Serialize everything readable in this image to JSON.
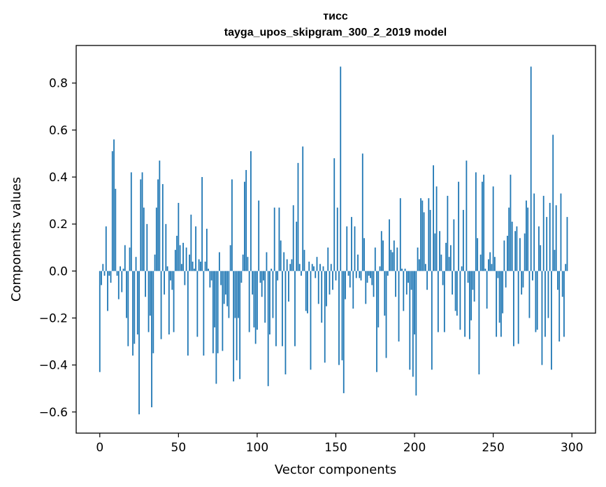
{
  "chart_data": {
    "type": "bar",
    "title": "тисс",
    "subtitle": "tayga_upos_skipgram_300_2_2019 model",
    "xlabel": "Vector components",
    "ylabel": "Components values",
    "xlim": [
      -15,
      315
    ],
    "ylim": [
      -0.69,
      0.96
    ],
    "xticks": [
      0,
      50,
      100,
      150,
      200,
      250,
      300
    ],
    "xtick_labels": [
      "0",
      "50",
      "100",
      "150",
      "200",
      "250",
      "300"
    ],
    "yticks": [
      -0.6,
      -0.4,
      -0.2,
      0.0,
      0.2,
      0.4,
      0.6,
      0.8
    ],
    "ytick_labels": [
      "−0.6",
      "−0.4",
      "−0.2",
      "0.0",
      "0.2",
      "0.4",
      "0.6",
      "0.8"
    ],
    "grid": false,
    "bar_color": "#1f77b4",
    "x_start": 0,
    "values": [
      -0.43,
      -0.06,
      0.03,
      -0.02,
      0.19,
      -0.17,
      -0.02,
      -0.05,
      0.51,
      0.56,
      0.35,
      -0.02,
      -0.12,
      0.02,
      -0.09,
      0.01,
      0.11,
      -0.2,
      -0.32,
      0.1,
      0.42,
      -0.36,
      -0.31,
      0.06,
      -0.27,
      -0.61,
      0.39,
      0.42,
      0.27,
      -0.11,
      0.2,
      -0.26,
      -0.19,
      -0.58,
      -0.35,
      0.07,
      0.27,
      0.39,
      0.47,
      -0.29,
      0.37,
      -0.1,
      0.2,
      0.02,
      -0.27,
      -0.04,
      -0.08,
      -0.26,
      0.09,
      0.15,
      0.29,
      0.11,
      0.03,
      0.12,
      -0.06,
      0.1,
      -0.36,
      0.07,
      0.24,
      0.04,
      0.01,
      0.19,
      -0.28,
      0.05,
      0.04,
      0.4,
      -0.36,
      0.04,
      0.18,
      0.01,
      -0.07,
      -0.04,
      -0.35,
      -0.24,
      -0.48,
      -0.35,
      0.08,
      -0.06,
      -0.34,
      -0.14,
      -0.1,
      -0.15,
      -0.2,
      0.11,
      0.39,
      -0.47,
      -0.2,
      -0.38,
      -0.2,
      -0.46,
      -0.05,
      0.07,
      0.38,
      0.43,
      0.06,
      -0.26,
      0.51,
      -0.1,
      -0.24,
      -0.31,
      -0.25,
      0.3,
      -0.05,
      -0.11,
      -0.04,
      -0.22,
      0.08,
      -0.49,
      -0.27,
      0.01,
      -0.2,
      0.27,
      -0.32,
      -0.04,
      0.27,
      0.13,
      -0.32,
      0.08,
      -0.44,
      0.05,
      -0.13,
      0.03,
      0.05,
      0.28,
      -0.32,
      0.21,
      0.46,
      0.03,
      -0.02,
      0.53,
      0.09,
      -0.17,
      -0.18,
      0.04,
      -0.42,
      0.03,
      0.02,
      -0.03,
      0.06,
      -0.14,
      0.03,
      -0.22,
      0.02,
      -0.39,
      -0.15,
      0.1,
      -0.1,
      0.03,
      -0.08,
      0.48,
      -0.04,
      0.27,
      -0.4,
      0.87,
      -0.38,
      -0.52,
      -0.12,
      0.19,
      -0.02,
      -0.07,
      0.23,
      -0.16,
      0.19,
      -0.03,
      0.07,
      -0.03,
      -0.04,
      0.5,
      0.14,
      -0.14,
      -0.05,
      -0.02,
      -0.03,
      -0.06,
      -0.11,
      0.1,
      -0.43,
      -0.24,
      0.02,
      0.17,
      0.13,
      -0.19,
      -0.37,
      -0.02,
      0.22,
      0.09,
      0.08,
      0.13,
      -0.11,
      0.1,
      -0.3,
      0.31,
      0.01,
      -0.17,
      0.01,
      -0.1,
      -0.05,
      -0.42,
      -0.08,
      -0.45,
      -0.27,
      -0.53,
      0.1,
      0.05,
      0.31,
      0.3,
      0.25,
      0.03,
      -0.08,
      0.31,
      0.26,
      -0.42,
      0.45,
      0.16,
      0.36,
      -0.26,
      0.17,
      0.07,
      -0.06,
      -0.26,
      0.12,
      0.32,
      0.06,
      0.11,
      -0.1,
      0.22,
      -0.17,
      -0.19,
      0.38,
      -0.25,
      0.02,
      0.26,
      -0.28,
      0.47,
      -0.05,
      -0.29,
      -0.21,
      -0.08,
      -0.13,
      0.42,
      0.14,
      -0.44,
      0.07,
      0.38,
      0.41,
      0.01,
      -0.16,
      0.05,
      0.08,
      0.03,
      0.36,
      0.06,
      -0.28,
      -0.03,
      -0.22,
      -0.28,
      -0.18,
      0.13,
      -0.07,
      0.15,
      0.27,
      0.41,
      0.21,
      -0.32,
      0.17,
      0.19,
      -0.31,
      0.14,
      -0.1,
      -0.07,
      0.16,
      0.3,
      0.27,
      -0.2,
      0.87,
      -0.04,
      0.33,
      -0.26,
      -0.25,
      0.19,
      0.11,
      -0.4,
      0.32,
      -0.28,
      0.23,
      -0.2,
      0.29,
      -0.42,
      0.58,
      0.09,
      0.28,
      -0.08,
      -0.3,
      0.33,
      -0.11,
      -0.28,
      0.03,
      0.23
    ]
  }
}
